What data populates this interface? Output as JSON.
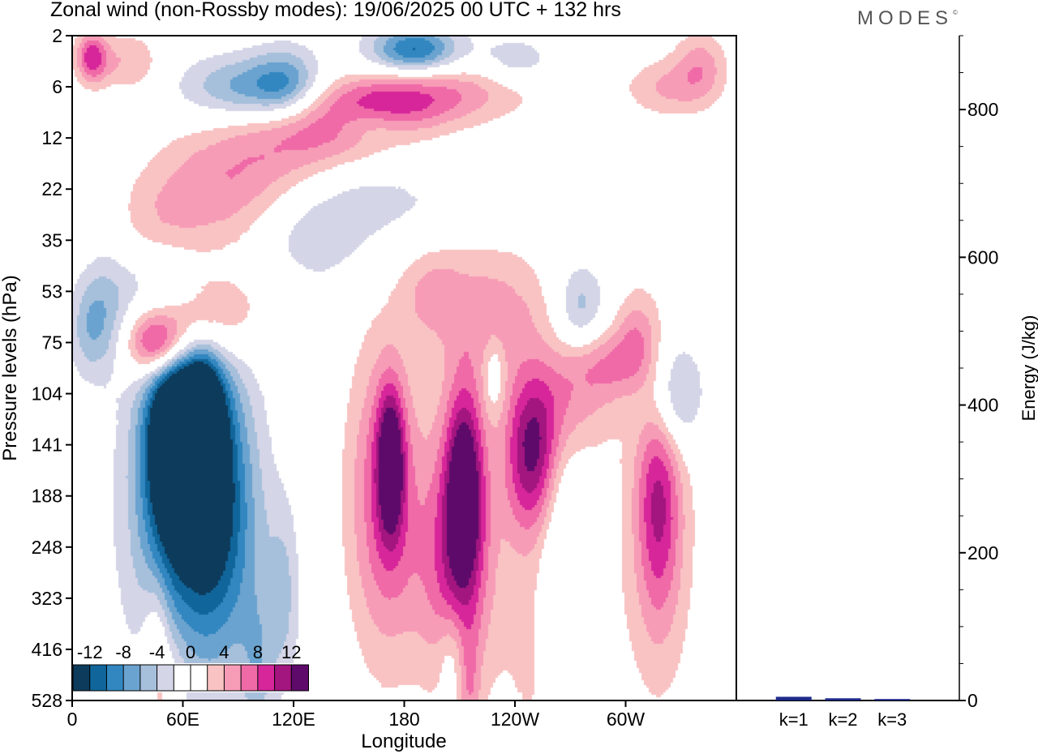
{
  "title": "Zonal wind (non-Rossby modes):  19/06/2025  00 UTC  + 132 hrs",
  "brand": "MODES",
  "brand_mark": "©",
  "chart_data": [
    {
      "type": "heatmap",
      "xlabel": "Longitude",
      "ylabel": "Pressure levels (hPa)",
      "x_ticks": [
        "0",
        "60E",
        "120E",
        "180",
        "120W",
        "60W"
      ],
      "x_tick_values": [
        0,
        60,
        120,
        180,
        240,
        300
      ],
      "xlim": [
        0,
        360
      ],
      "y_ticks": [
        "2",
        "6",
        "12",
        "22",
        "35",
        "53",
        "75",
        "104",
        "141",
        "188",
        "248",
        "323",
        "416",
        "528"
      ],
      "colorbar": {
        "labels": [
          "-12",
          "-8",
          "-4",
          "0",
          "4",
          "8",
          "12"
        ],
        "colors": [
          "#0d3b5c",
          "#10669a",
          "#3287c0",
          "#6aa3cf",
          "#a6bfdb",
          "#d4d5e7",
          "#ffffff",
          "#ffffff",
          "#f9c3c3",
          "#f79cb7",
          "#ef6aa7",
          "#d7269a",
          "#a3157f",
          "#5e0a6b"
        ]
      },
      "blobs": [
        {
          "lon": 55,
          "level": 7.8,
          "value": -14,
          "wx": 9,
          "wy": 1.0
        },
        {
          "lon": 70,
          "level": 7.6,
          "value": -14,
          "wx": 7,
          "wy": 0.9
        },
        {
          "lon": 60,
          "level": 8.2,
          "value": -10,
          "wx": 16,
          "wy": 1.7
        },
        {
          "lon": 75,
          "level": 8.6,
          "value": -7,
          "wx": 15,
          "wy": 2.0
        },
        {
          "lon": 55,
          "level": 9.5,
          "value": -5,
          "wx": 22,
          "wy": 2.3
        },
        {
          "lon": 85,
          "level": 10.5,
          "value": -4,
          "wx": 20,
          "wy": 2.0
        },
        {
          "lon": 45,
          "level": 6.0,
          "value": 10,
          "wx": 11,
          "wy": 0.45
        },
        {
          "lon": 62,
          "level": 5.8,
          "value": 6,
          "wx": 18,
          "wy": 0.6
        },
        {
          "lon": 75,
          "level": 5.3,
          "value": 4,
          "wx": 20,
          "wy": 0.6
        },
        {
          "lon": 45,
          "level": 4.5,
          "value": -5,
          "wx": 14,
          "wy": 0.8
        },
        {
          "lon": 10,
          "level": 5.7,
          "value": -5,
          "wx": 9,
          "wy": 0.7
        },
        {
          "lon": 20,
          "level": 5.1,
          "value": -3,
          "wx": 10,
          "wy": 0.8
        },
        {
          "lon": 45,
          "level": 11.7,
          "value": 3.5,
          "wx": 5,
          "wy": 0.8
        },
        {
          "lon": 50,
          "level": 13.0,
          "value": 3.5,
          "wx": 8,
          "wy": 0.9
        },
        {
          "lon": 114,
          "level": 11.0,
          "value": -3.5,
          "wx": 6,
          "wy": 1.2
        },
        {
          "lon": 100,
          "level": 12.3,
          "value": -3.5,
          "wx": 6,
          "wy": 0.9
        },
        {
          "lon": 172,
          "level": 8.3,
          "value": 11,
          "wx": 5,
          "wy": 1.0
        },
        {
          "lon": 168,
          "level": 8.8,
          "value": 5,
          "wx": 13,
          "wy": 2.0
        },
        {
          "lon": 172,
          "level": 9.4,
          "value": 3.5,
          "wx": 16,
          "wy": 2.3
        },
        {
          "lon": 212,
          "level": 8.7,
          "value": 11,
          "wx": 7,
          "wy": 1.3
        },
        {
          "lon": 210,
          "level": 9.6,
          "value": 6,
          "wx": 12,
          "wy": 2.2
        },
        {
          "lon": 205,
          "level": 10.5,
          "value": 4,
          "wx": 15,
          "wy": 1.4
        },
        {
          "lon": 215,
          "level": 12.8,
          "value": 3.5,
          "wx": 4,
          "wy": 0.8
        },
        {
          "lon": 248,
          "level": 8.0,
          "value": 8,
          "wx": 10,
          "wy": 1.0
        },
        {
          "lon": 265,
          "level": 7.2,
          "value": 5,
          "wx": 18,
          "wy": 0.8
        },
        {
          "lon": 290,
          "level": 6.4,
          "value": 5,
          "wx": 16,
          "wy": 0.5
        },
        {
          "lon": 305,
          "level": 5.8,
          "value": 4,
          "wx": 8,
          "wy": 0.6
        },
        {
          "lon": 250,
          "level": 8.8,
          "value": 4,
          "wx": 12,
          "wy": 1.0
        },
        {
          "lon": 317,
          "level": 9.0,
          "value": 7,
          "wx": 8,
          "wy": 1.6
        },
        {
          "lon": 318,
          "level": 9.5,
          "value": 4,
          "wx": 14,
          "wy": 2.5
        },
        {
          "lon": 325,
          "level": 7.0,
          "value": -7,
          "wx": 11,
          "wy": 0.8
        },
        {
          "lon": 275,
          "level": 5.3,
          "value": -5,
          "wx": 9,
          "wy": 0.6
        },
        {
          "lon": 265,
          "level": 9.7,
          "value": -5,
          "wx": 10,
          "wy": 1.5
        },
        {
          "lon": 228,
          "level": 6.6,
          "value": -3.5,
          "wx": 4,
          "wy": 0.5
        },
        {
          "lon": 260,
          "level": 11.5,
          "value": 3.5,
          "wx": 20,
          "wy": 2.2
        },
        {
          "lon": 260,
          "level": 12.5,
          "value": -3.5,
          "wx": 5,
          "wy": 1.5
        },
        {
          "lon": 205,
          "level": 12.1,
          "value": -3.5,
          "wx": 5,
          "wy": 0.7
        },
        {
          "lon": 10,
          "level": 0.4,
          "value": 9,
          "wx": 6,
          "wy": 0.35
        },
        {
          "lon": 30,
          "level": 0.5,
          "value": 4,
          "wx": 12,
          "wy": 0.4
        },
        {
          "lon": 95,
          "level": 1.0,
          "value": -7,
          "wx": 25,
          "wy": 0.45
        },
        {
          "lon": 115,
          "level": 0.9,
          "value": -5,
          "wx": 12,
          "wy": 0.5
        },
        {
          "lon": 185,
          "level": 0.25,
          "value": -8,
          "wx": 15,
          "wy": 0.3
        },
        {
          "lon": 185,
          "level": 0.5,
          "value": -4,
          "wx": 25,
          "wy": 0.5
        },
        {
          "lon": 240,
          "level": 0.5,
          "value": -4,
          "wx": 15,
          "wy": 0.35
        },
        {
          "lon": 200,
          "level": 1.0,
          "value": 6,
          "wx": 35,
          "wy": 0.45
        },
        {
          "lon": 170,
          "level": 1.3,
          "value": 6,
          "wx": 25,
          "wy": 0.4
        },
        {
          "lon": 140,
          "level": 1.8,
          "value": 6,
          "wx": 30,
          "wy": 0.5
        },
        {
          "lon": 100,
          "level": 2.5,
          "value": 4,
          "wx": 30,
          "wy": 0.7
        },
        {
          "lon": 70,
          "level": 3.3,
          "value": 4,
          "wx": 25,
          "wy": 0.8
        },
        {
          "lon": 45,
          "level": 4.0,
          "value": 5,
          "wx": 15,
          "wy": 0.7
        },
        {
          "lon": 160,
          "level": 3.2,
          "value": -3,
          "wx": 30,
          "wy": 0.6
        },
        {
          "lon": 130,
          "level": 4.0,
          "value": -3,
          "wx": 20,
          "wy": 0.6
        },
        {
          "lon": 160,
          "level": 1.7,
          "value": -4,
          "wx": 15,
          "wy": 0.3
        },
        {
          "lon": 195,
          "level": 5.0,
          "value": 4,
          "wx": 12,
          "wy": 0.6
        },
        {
          "lon": 230,
          "level": 5.4,
          "value": 5,
          "wx": 20,
          "wy": 0.9
        },
        {
          "lon": 320,
          "level": 1.0,
          "value": 4,
          "wx": 15,
          "wy": 0.4
        },
        {
          "lon": 340,
          "level": 0.6,
          "value": 5,
          "wx": 10,
          "wy": 0.5
        }
      ]
    },
    {
      "type": "bar",
      "categories": [
        "k=1",
        "k=2",
        "k=3"
      ],
      "values": [
        5,
        3,
        2
      ],
      "ylabel": "Energy (J/kg)",
      "ylim": [
        0,
        900
      ],
      "y_ticks": [
        0,
        200,
        400,
        600,
        800
      ],
      "bar_color": "#1e2a8a"
    }
  ]
}
